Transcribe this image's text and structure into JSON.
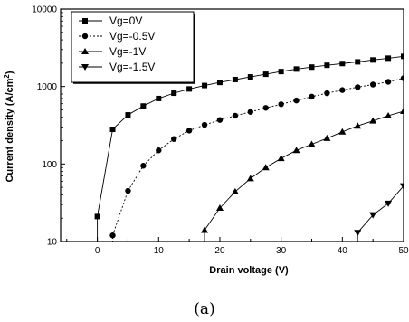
{
  "chart_data": {
    "type": "line",
    "xlabel": "Drain voltage (V)",
    "ylabel_main": "Current density (A/cm",
    "ylabel_sup": "2",
    "ylabel_close": ")",
    "xlim": [
      -6,
      50
    ],
    "ylim": [
      10,
      10000
    ],
    "y_scale": "log",
    "x_ticks": [
      0,
      10,
      20,
      30,
      40,
      50
    ],
    "x_tick_labels": [
      "0",
      "10",
      "20",
      "30",
      "40",
      "50"
    ],
    "y_ticks": [
      10,
      100,
      1000,
      10000
    ],
    "y_tick_labels": [
      "10",
      "100",
      "1000",
      "10000"
    ],
    "legend_position": "top-left",
    "series": [
      {
        "name": "Vg=0V",
        "marker": "square",
        "dash": "solid",
        "x": [
          0,
          2.5,
          5,
          7.5,
          10,
          12.5,
          15,
          17.5,
          20,
          22.5,
          25,
          27.5,
          30,
          32.5,
          35,
          37.5,
          40,
          42.5,
          45,
          47.5,
          50
        ],
        "y": [
          21,
          280,
          430,
          560,
          700,
          820,
          930,
          1030,
          1130,
          1230,
          1330,
          1440,
          1560,
          1680,
          1780,
          1880,
          1980,
          2080,
          2200,
          2320,
          2450
        ]
      },
      {
        "name": "Vg=-0.5V",
        "marker": "circle",
        "dash": "dashed",
        "x": [
          2.5,
          5,
          7.5,
          10,
          12.5,
          15,
          17.5,
          20,
          22.5,
          25,
          27.5,
          30,
          32.5,
          35,
          37.5,
          40,
          42.5,
          45,
          47.5,
          50
        ],
        "y": [
          12,
          45,
          95,
          150,
          210,
          270,
          320,
          370,
          420,
          470,
          530,
          590,
          660,
          740,
          820,
          900,
          980,
          1060,
          1150,
          1280
        ]
      },
      {
        "name": "Vg=-1V",
        "marker": "triangle-up",
        "dash": "solid",
        "x": [
          17.5,
          20,
          22.5,
          25,
          27.5,
          30,
          32.5,
          35,
          37.5,
          40,
          42.5,
          45,
          47.5,
          50
        ],
        "y": [
          14,
          27,
          44,
          65,
          90,
          118,
          150,
          180,
          215,
          260,
          310,
          360,
          420,
          480
        ]
      },
      {
        "name": "Vg=-1.5V",
        "marker": "triangle-down",
        "dash": "solid",
        "x": [
          42.5,
          45,
          47.5,
          50
        ],
        "y": [
          13,
          22,
          31,
          52
        ]
      }
    ]
  },
  "caption": "(a)"
}
